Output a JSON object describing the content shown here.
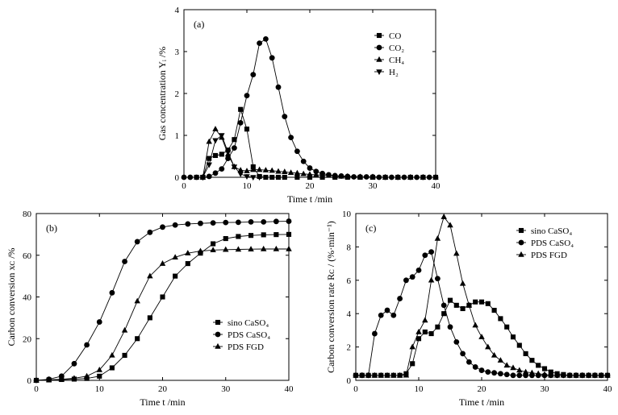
{
  "chart_data": [
    {
      "id": "a",
      "type": "line",
      "panel_label": "(a)",
      "xlabel": "Time    t /min",
      "ylabel": "Gas concentration  Yᵢ /%",
      "xlim": [
        0,
        40
      ],
      "ylim": [
        0,
        4
      ],
      "xticks": [
        "0",
        "10",
        "20",
        "30",
        "40"
      ],
      "yticks": [
        "0",
        "1",
        "2",
        "3",
        "4"
      ],
      "legend_position": "top-right",
      "series": [
        {
          "name": "CO",
          "marker": "square",
          "x": [
            2,
            3,
            4,
            5,
            6,
            7,
            8,
            9,
            10,
            11,
            12,
            13,
            14,
            15,
            16,
            18,
            20,
            22,
            24,
            26,
            28,
            30,
            32,
            34,
            36,
            38,
            40
          ],
          "y": [
            0,
            0,
            0.45,
            0.52,
            0.55,
            0.65,
            0.9,
            1.62,
            1.15,
            0.25,
            0.02,
            0,
            0,
            0,
            0,
            0,
            0,
            0,
            0,
            0,
            0,
            0,
            0,
            0,
            0,
            0,
            0
          ]
        },
        {
          "name": "CO₂",
          "marker": "circle",
          "x": [
            0,
            1,
            2,
            3,
            4,
            5,
            6,
            7,
            8,
            9,
            10,
            11,
            12,
            13,
            14,
            15,
            16,
            17,
            18,
            19,
            20,
            21,
            22,
            23,
            24,
            25,
            26,
            27,
            28,
            29,
            30,
            31,
            32,
            33,
            34,
            35,
            36,
            37,
            38,
            39,
            40
          ],
          "y": [
            0,
            0,
            0,
            0,
            0.02,
            0.1,
            0.2,
            0.45,
            0.7,
            1.3,
            1.95,
            2.45,
            3.2,
            3.3,
            2.85,
            2.15,
            1.45,
            0.95,
            0.62,
            0.38,
            0.22,
            0.14,
            0.09,
            0.06,
            0.04,
            0.03,
            0.02,
            0.01,
            0.01,
            0.01,
            0.01,
            0,
            0,
            0,
            0,
            0,
            0,
            0,
            0,
            0,
            0
          ]
        },
        {
          "name": "CH₄",
          "marker": "triangle",
          "x": [
            3,
            4,
            5,
            6,
            7,
            8,
            9,
            10,
            11,
            12,
            13,
            14,
            15,
            16,
            17,
            18,
            19,
            20,
            21,
            22,
            23,
            24,
            25,
            26,
            28,
            30,
            32,
            34,
            36,
            38,
            40
          ],
          "y": [
            0,
            0.85,
            1.15,
            0.95,
            0.55,
            0.25,
            0.17,
            0.15,
            0.18,
            0.18,
            0.17,
            0.16,
            0.14,
            0.13,
            0.11,
            0.1,
            0.08,
            0.07,
            0.06,
            0.05,
            0.04,
            0.03,
            0.02,
            0.02,
            0.01,
            0.01,
            0,
            0,
            0,
            0,
            0
          ]
        },
        {
          "name": "H₂",
          "marker": "triangle-down",
          "x": [
            3,
            4,
            5,
            6,
            7,
            8,
            9,
            10,
            11,
            12
          ],
          "y": [
            0,
            0.3,
            0.88,
            1.0,
            0.6,
            0.25,
            0.08,
            0.02,
            0,
            0
          ]
        }
      ]
    },
    {
      "id": "b",
      "type": "line",
      "panel_label": "(b)",
      "xlabel": "Time    t /min",
      "ylabel": "Carbon conversion   xᴄ /%",
      "xlim": [
        0,
        40
      ],
      "ylim": [
        0,
        80
      ],
      "xticks": [
        "0",
        "10",
        "20",
        "30",
        "40"
      ],
      "yticks": [
        "0",
        "20",
        "40",
        "60",
        "80"
      ],
      "legend_position": "bottom-right",
      "series": [
        {
          "name": "sino CaSO₄",
          "marker": "square",
          "x": [
            0,
            2,
            4,
            6,
            8,
            10,
            12,
            14,
            16,
            18,
            20,
            22,
            24,
            26,
            28,
            30,
            32,
            34,
            36,
            38,
            40
          ],
          "y": [
            0,
            0.2,
            0.4,
            0.6,
            0.9,
            2,
            6,
            12,
            20,
            30,
            40,
            50,
            56,
            61,
            65.5,
            68,
            69,
            69.5,
            69.8,
            69.9,
            70
          ]
        },
        {
          "name": "PDS CaSO₄",
          "marker": "circle",
          "x": [
            0,
            2,
            4,
            6,
            8,
            10,
            12,
            14,
            16,
            18,
            20,
            22,
            24,
            26,
            28,
            30,
            32,
            34,
            36,
            38,
            40
          ],
          "y": [
            0,
            0.5,
            2,
            8,
            17,
            28,
            42,
            57,
            66.5,
            71,
            73.5,
            74.5,
            75,
            75.3,
            75.5,
            75.7,
            75.8,
            76,
            76,
            76.2,
            76.3
          ]
        },
        {
          "name": "PDS FGD",
          "marker": "triangle",
          "x": [
            0,
            2,
            4,
            6,
            8,
            10,
            12,
            14,
            16,
            18,
            20,
            22,
            24,
            26,
            28,
            30,
            32,
            34,
            36,
            38,
            40
          ],
          "y": [
            0,
            0.2,
            0.5,
            1,
            2,
            5,
            12,
            24,
            38,
            50,
            56,
            59,
            61,
            62,
            62.5,
            62.7,
            62.8,
            62.9,
            63,
            63,
            63
          ]
        }
      ]
    },
    {
      "id": "c",
      "type": "line",
      "panel_label": "(c)",
      "xlabel": "Time    t /min",
      "ylabel": "Carbon conversion rate   Rᴄ / (%·min⁻¹)",
      "xlim": [
        0,
        40
      ],
      "ylim": [
        0,
        10
      ],
      "xticks": [
        "0",
        "10",
        "20",
        "30",
        "40"
      ],
      "yticks": [
        "0",
        "2",
        "4",
        "6",
        "8",
        "10"
      ],
      "legend_position": "top-right",
      "series": [
        {
          "name": "sino CaSO₄",
          "marker": "square",
          "x": [
            0,
            1,
            2,
            3,
            4,
            5,
            6,
            7,
            8,
            9,
            10,
            11,
            12,
            13,
            14,
            15,
            16,
            17,
            18,
            19,
            20,
            21,
            22,
            23,
            24,
            25,
            26,
            27,
            28,
            29,
            30,
            31,
            32,
            33,
            34,
            35,
            36,
            37,
            38,
            39,
            40
          ],
          "y": [
            0.3,
            0.3,
            0.3,
            0.3,
            0.3,
            0.3,
            0.3,
            0.3,
            0.4,
            1.0,
            2.5,
            2.9,
            2.8,
            3.2,
            4.0,
            4.8,
            4.5,
            4.3,
            4.5,
            4.7,
            4.7,
            4.6,
            4.2,
            3.7,
            3.2,
            2.6,
            2.1,
            1.6,
            1.2,
            0.9,
            0.7,
            0.5,
            0.4,
            0.35,
            0.3,
            0.3,
            0.3,
            0.3,
            0.3,
            0.3,
            0.3
          ]
        },
        {
          "name": "PDS CaSO₄",
          "marker": "circle",
          "x": [
            0,
            1,
            2,
            3,
            4,
            5,
            6,
            7,
            8,
            9,
            10,
            11,
            12,
            13,
            14,
            15,
            16,
            17,
            18,
            19,
            20,
            21,
            22,
            23,
            24,
            25,
            26,
            27,
            28,
            29,
            30,
            31,
            32,
            33,
            34,
            35,
            36,
            37,
            38,
            39,
            40
          ],
          "y": [
            0.3,
            0.3,
            0.3,
            2.8,
            3.9,
            4.2,
            3.9,
            4.9,
            6.0,
            6.2,
            6.6,
            7.5,
            7.7,
            6.1,
            4.5,
            3.2,
            2.3,
            1.6,
            1.1,
            0.8,
            0.6,
            0.5,
            0.45,
            0.4,
            0.35,
            0.3,
            0.3,
            0.3,
            0.3,
            0.3,
            0.3,
            0.3,
            0.3,
            0.3,
            0.3,
            0.3,
            0.3,
            0.3,
            0.3,
            0.3,
            0.3
          ]
        },
        {
          "name": "PDS FGD",
          "marker": "triangle",
          "x": [
            0,
            1,
            2,
            3,
            4,
            5,
            6,
            7,
            8,
            9,
            10,
            11,
            12,
            13,
            14,
            15,
            16,
            17,
            18,
            19,
            20,
            21,
            22,
            23,
            24,
            25,
            26,
            27,
            28,
            29,
            30,
            31,
            32,
            33,
            34,
            35,
            36,
            37,
            38,
            39,
            40
          ],
          "y": [
            0.3,
            0.3,
            0.3,
            0.3,
            0.3,
            0.3,
            0.3,
            0.3,
            0.3,
            2.0,
            2.9,
            3.6,
            6.0,
            8.5,
            9.8,
            9.3,
            7.6,
            5.8,
            4.5,
            3.3,
            2.6,
            2.0,
            1.5,
            1.2,
            0.9,
            0.75,
            0.6,
            0.5,
            0.45,
            0.4,
            0.35,
            0.3,
            0.3,
            0.3,
            0.3,
            0.3,
            0.3,
            0.3,
            0.3,
            0.3,
            0.3
          ]
        }
      ]
    }
  ]
}
